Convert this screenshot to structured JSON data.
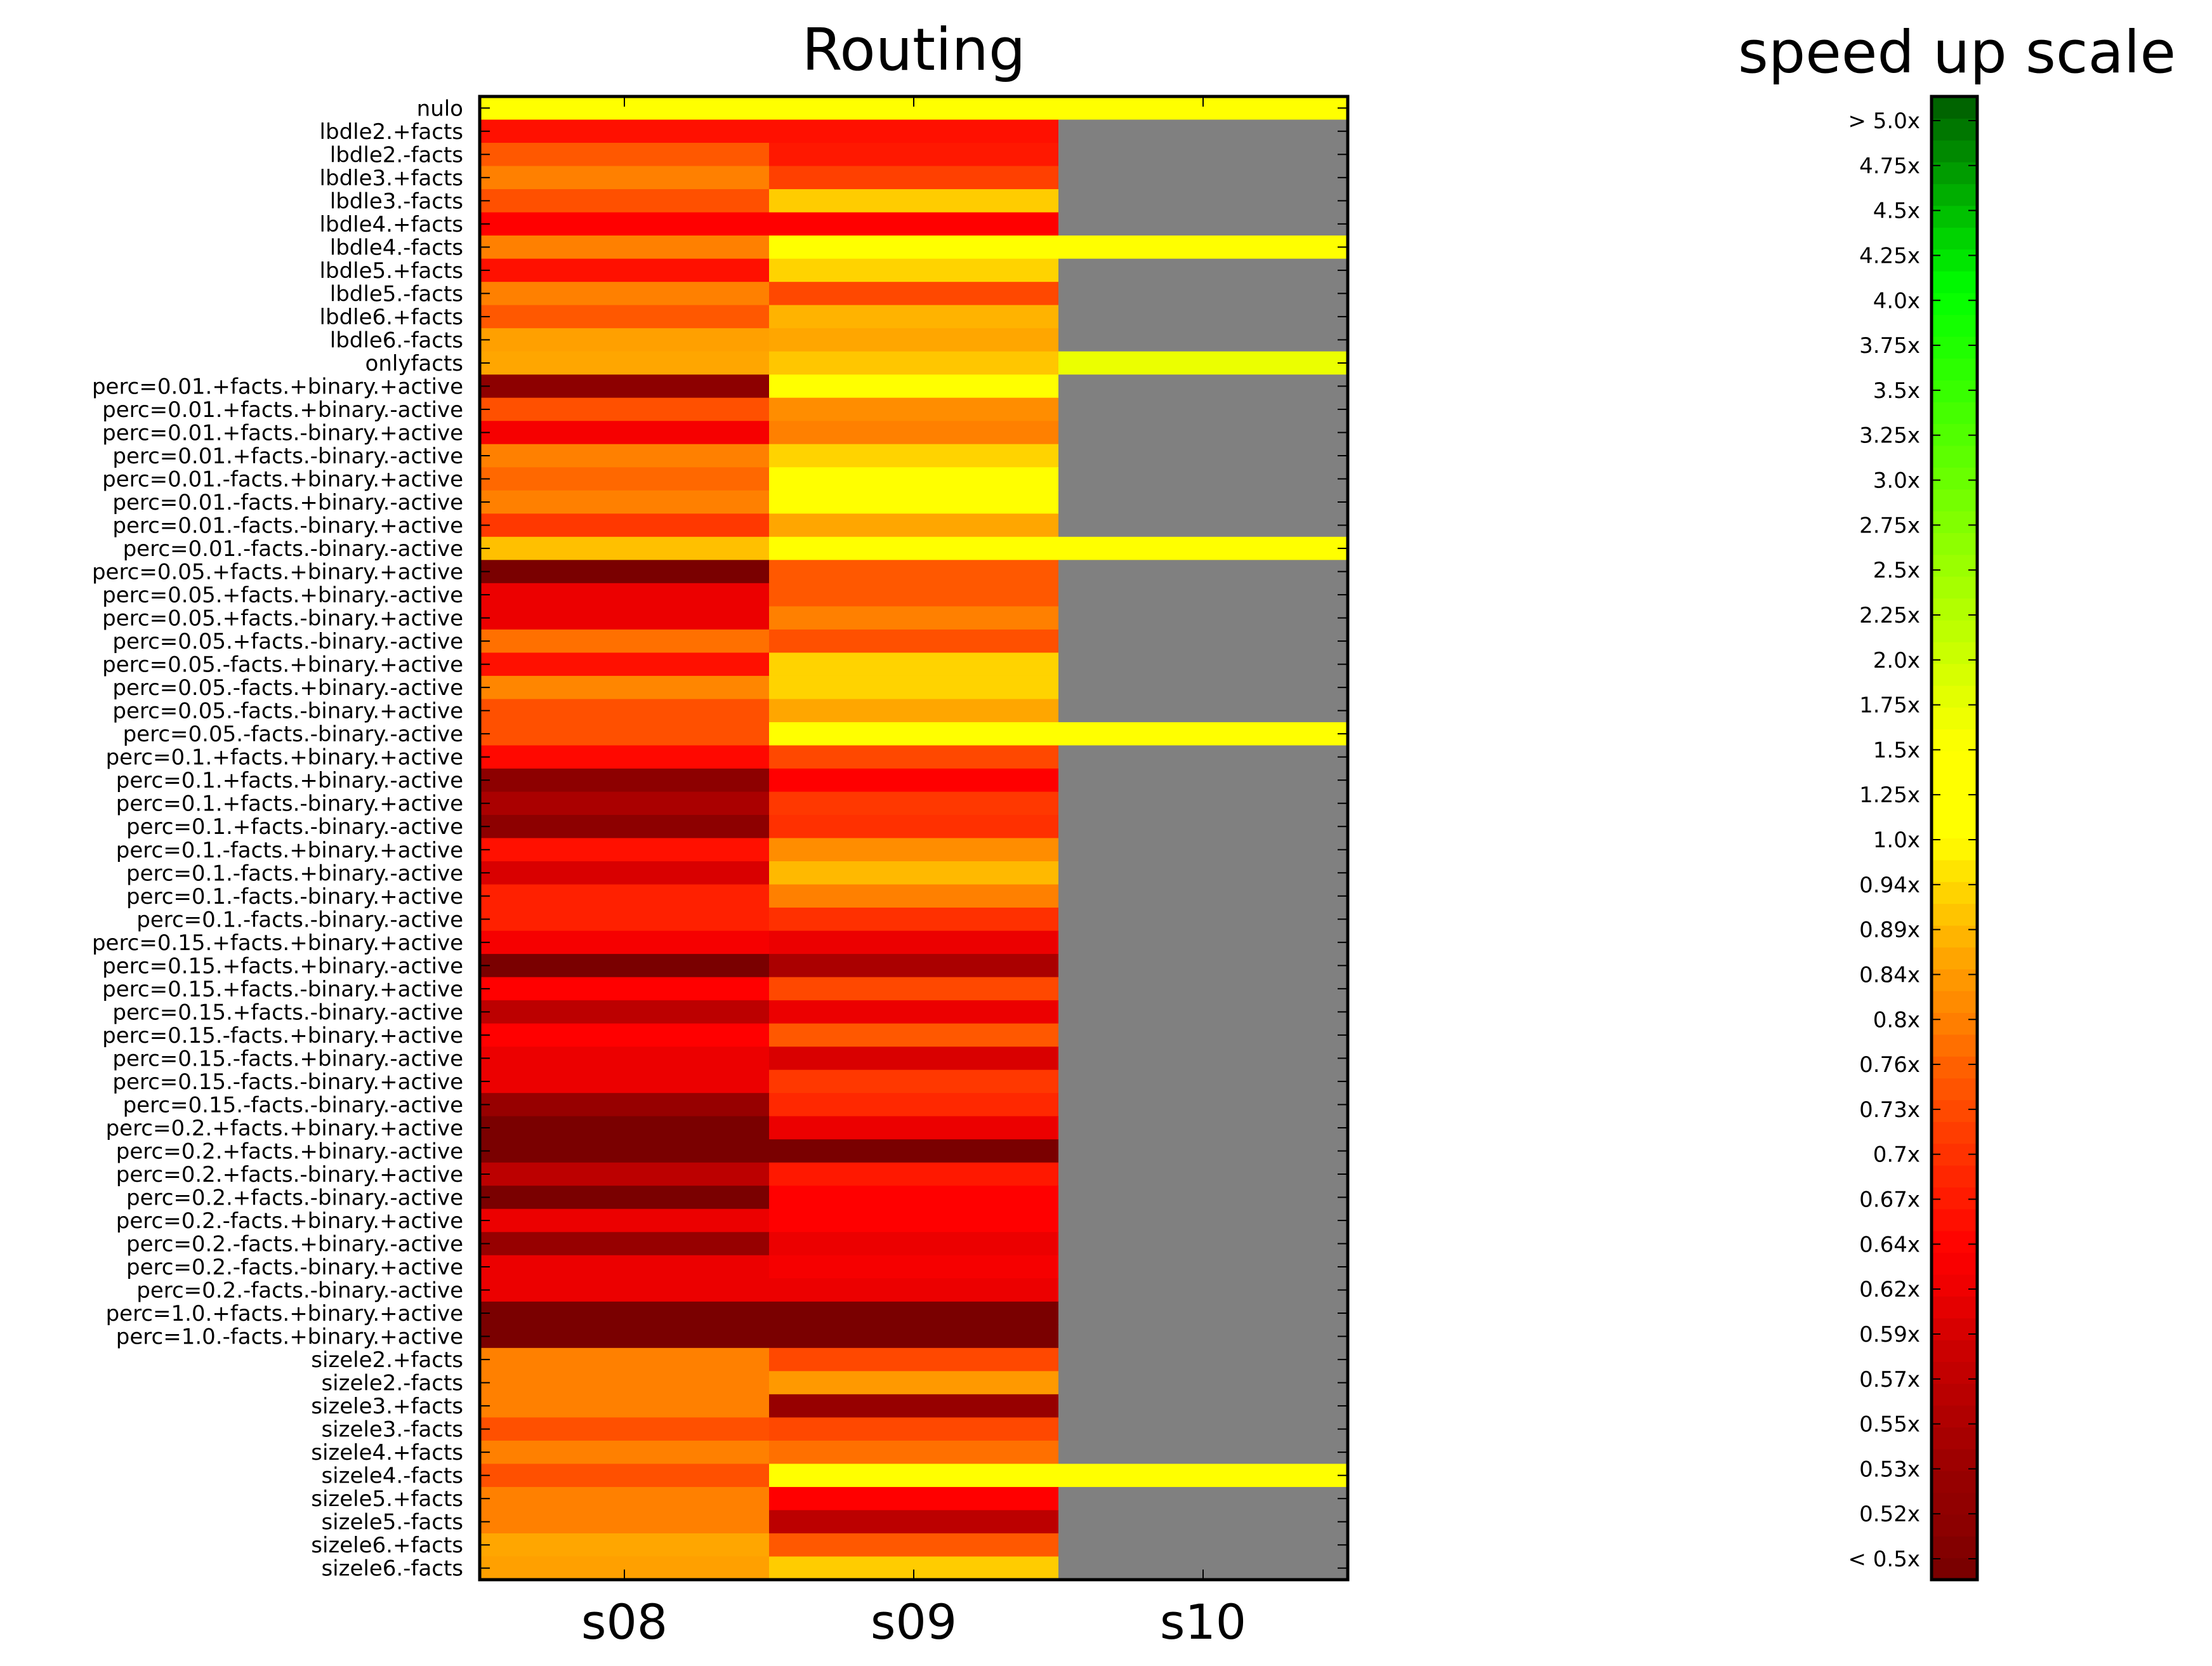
{
  "chart_data": [
    {
      "type": "heatmap",
      "title": "Routing",
      "xlabel": "",
      "ylabel": "",
      "grid": false,
      "x": [
        "s08",
        "s09",
        "s10"
      ],
      "y": [
        "nulo",
        "lbdle2.+facts",
        "lbdle2.-facts",
        "lbdle3.+facts",
        "lbdle3.-facts",
        "lbdle4.+facts",
        "lbdle4.-facts",
        "lbdle5.+facts",
        "lbdle5.-facts",
        "lbdle6.+facts",
        "lbdle6.-facts",
        "onlyfacts",
        "perc=0.01.+facts.+binary.+active",
        "perc=0.01.+facts.+binary.-active",
        "perc=0.01.+facts.-binary.+active",
        "perc=0.01.+facts.-binary.-active",
        "perc=0.01.-facts.+binary.+active",
        "perc=0.01.-facts.+binary.-active",
        "perc=0.01.-facts.-binary.+active",
        "perc=0.01.-facts.-binary.-active",
        "perc=0.05.+facts.+binary.+active",
        "perc=0.05.+facts.+binary.-active",
        "perc=0.05.+facts.-binary.+active",
        "perc=0.05.+facts.-binary.-active",
        "perc=0.05.-facts.+binary.+active",
        "perc=0.05.-facts.+binary.-active",
        "perc=0.05.-facts.-binary.+active",
        "perc=0.05.-facts.-binary.-active",
        "perc=0.1.+facts.+binary.+active",
        "perc=0.1.+facts.+binary.-active",
        "perc=0.1.+facts.-binary.+active",
        "perc=0.1.+facts.-binary.-active",
        "perc=0.1.-facts.+binary.+active",
        "perc=0.1.-facts.+binary.-active",
        "perc=0.1.-facts.-binary.+active",
        "perc=0.1.-facts.-binary.-active",
        "perc=0.15.+facts.+binary.+active",
        "perc=0.15.+facts.+binary.-active",
        "perc=0.15.+facts.-binary.+active",
        "perc=0.15.+facts.-binary.-active",
        "perc=0.15.-facts.+binary.+active",
        "perc=0.15.-facts.+binary.-active",
        "perc=0.15.-facts.-binary.+active",
        "perc=0.15.-facts.-binary.-active",
        "perc=0.2.+facts.+binary.+active",
        "perc=0.2.+facts.+binary.-active",
        "perc=0.2.+facts.-binary.+active",
        "perc=0.2.+facts.-binary.-active",
        "perc=0.2.-facts.+binary.+active",
        "perc=0.2.-facts.+binary.-active",
        "perc=0.2.-facts.-binary.+active",
        "perc=0.2.-facts.-binary.-active",
        "perc=1.0.+facts.+binary.+active",
        "perc=1.0.-facts.+binary.+active",
        "sizele2.+facts",
        "sizele2.-facts",
        "sizele3.+facts",
        "sizele3.-facts",
        "sizele4.+facts",
        "sizele4.-facts",
        "sizele5.+facts",
        "sizele5.-facts",
        "sizele6.+facts",
        "sizele6.-facts"
      ],
      "value_unit": "speed up",
      "no_data_color": "#808080",
      "values": [
        [
          1.5,
          1.5,
          1.5
        ],
        [
          0.66,
          0.66,
          null
        ],
        [
          0.75,
          0.67,
          null
        ],
        [
          0.8,
          0.72,
          null
        ],
        [
          0.74,
          0.92,
          null
        ],
        [
          0.64,
          0.64,
          null
        ],
        [
          0.8,
          1.1,
          1.5
        ],
        [
          0.66,
          0.93,
          null
        ],
        [
          0.8,
          0.73,
          null
        ],
        [
          0.75,
          0.88,
          null
        ],
        [
          0.85,
          0.86,
          null
        ],
        [
          0.86,
          0.91,
          1.7
        ],
        [
          0.52,
          1.25,
          null
        ],
        [
          0.74,
          0.82,
          null
        ],
        [
          0.63,
          0.8,
          null
        ],
        [
          0.8,
          0.93,
          null
        ],
        [
          0.77,
          1.2,
          null
        ],
        [
          0.8,
          1.1,
          null
        ],
        [
          0.71,
          0.86,
          null
        ],
        [
          0.9,
          1.5,
          1.5
        ],
        [
          0.5,
          0.75,
          null
        ],
        [
          0.62,
          0.75,
          null
        ],
        [
          0.62,
          0.8,
          null
        ],
        [
          0.78,
          0.74,
          null
        ],
        [
          0.66,
          0.93,
          null
        ],
        [
          0.81,
          0.93,
          null
        ],
        [
          0.74,
          0.86,
          null
        ],
        [
          0.74,
          1.5,
          1.5
        ],
        [
          0.65,
          0.73,
          null
        ],
        [
          0.52,
          0.64,
          null
        ],
        [
          0.55,
          0.71,
          null
        ],
        [
          0.52,
          0.7,
          null
        ],
        [
          0.66,
          0.82,
          null
        ],
        [
          0.6,
          0.89,
          null
        ],
        [
          0.68,
          0.8,
          null
        ],
        [
          0.68,
          0.7,
          null
        ],
        [
          0.63,
          0.62,
          null
        ],
        [
          0.5,
          0.55,
          null
        ],
        [
          0.64,
          0.73,
          null
        ],
        [
          0.57,
          0.62,
          null
        ],
        [
          0.64,
          0.75,
          null
        ],
        [
          0.62,
          0.6,
          null
        ],
        [
          0.62,
          0.71,
          null
        ],
        [
          0.53,
          0.69,
          null
        ],
        [
          0.45,
          0.62,
          null
        ],
        [
          0.45,
          0.5,
          null
        ],
        [
          0.57,
          0.67,
          null
        ],
        [
          0.45,
          0.64,
          null
        ],
        [
          0.62,
          0.64,
          null
        ],
        [
          0.53,
          0.62,
          null
        ],
        [
          0.62,
          0.63,
          null
        ],
        [
          0.62,
          0.62,
          null
        ],
        [
          0.45,
          0.45,
          null
        ],
        [
          0.45,
          0.45,
          null
        ],
        [
          0.8,
          0.73,
          null
        ],
        [
          0.8,
          0.84,
          null
        ],
        [
          0.8,
          0.53,
          null
        ],
        [
          0.74,
          0.73,
          null
        ],
        [
          0.8,
          0.78,
          null
        ],
        [
          0.74,
          1.1,
          1.5
        ],
        [
          0.8,
          0.64,
          null
        ],
        [
          0.8,
          0.57,
          null
        ],
        [
          0.86,
          0.75,
          null
        ],
        [
          0.85,
          0.92,
          null
        ]
      ]
    },
    {
      "type": "colorbar",
      "title": "speed up scale",
      "tick_labels": [
        "< 0.5x",
        "0.52x",
        "0.53x",
        "0.55x",
        "0.57x",
        "0.59x",
        "0.62x",
        "0.64x",
        "0.67x",
        "0.7x",
        "0.73x",
        "0.76x",
        "0.8x",
        "0.84x",
        "0.89x",
        "0.94x",
        "1.0x",
        "1.25x",
        "1.5x",
        "1.75x",
        "2.0x",
        "2.25x",
        "2.5x",
        "2.75x",
        "3.0x",
        "3.25x",
        "3.5x",
        "3.75x",
        "4.0x",
        "4.25x",
        "4.5x",
        "4.75x",
        "> 5.0x"
      ],
      "tick_values": [
        0.5,
        0.52,
        0.53,
        0.55,
        0.57,
        0.59,
        0.62,
        0.64,
        0.67,
        0.7,
        0.73,
        0.76,
        0.8,
        0.84,
        0.89,
        0.94,
        1.0,
        1.25,
        1.5,
        1.75,
        2.0,
        2.25,
        2.5,
        2.75,
        3.0,
        3.25,
        3.5,
        3.75,
        4.0,
        4.25,
        4.5,
        4.75,
        5.0
      ],
      "colors": {
        "low": "#7a0000",
        "mid_red": "#ff0000",
        "orange": "#ff8000",
        "yellow": "#ffff00",
        "green": "#00ff00",
        "high": "#006400"
      }
    }
  ]
}
